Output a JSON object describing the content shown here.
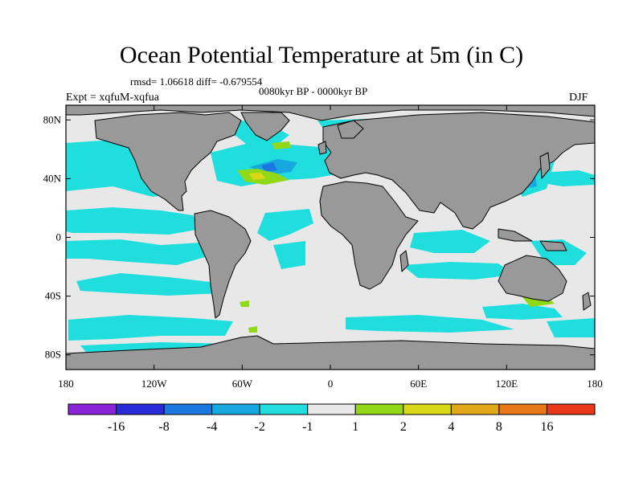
{
  "map": {
    "title": "Ocean Potential Temperature at 5m (in C)",
    "stats_text": "rmsd= 1.06618 diff= -0.679554",
    "period_text": "0080kyr BP - 0000kyr BP",
    "experiment_text": "Expt = xqfuM-xqfua",
    "season_text": "DJF",
    "projection": "cylindrical-equidistant",
    "lon_range": [
      -180,
      180
    ],
    "lat_range": [
      -90,
      90
    ],
    "lat_ticks": [
      {
        "value": 80,
        "label": "80N"
      },
      {
        "value": 40,
        "label": "40N"
      },
      {
        "value": 0,
        "label": "0"
      },
      {
        "value": -40,
        "label": "40S"
      },
      {
        "value": -80,
        "label": "80S"
      }
    ],
    "lon_ticks": [
      {
        "value": -180,
        "label": "180"
      },
      {
        "value": -120,
        "label": "120W"
      },
      {
        "value": -60,
        "label": "60W"
      },
      {
        "value": 0,
        "label": "0"
      },
      {
        "value": 60,
        "label": "60E"
      },
      {
        "value": 120,
        "label": "120E"
      },
      {
        "value": 180,
        "label": "180"
      }
    ],
    "colors": {
      "land": "#999999",
      "ocean_neutral": "#e8e8e8",
      "coast": "#000000"
    }
  },
  "colorbar": {
    "colors": [
      "#8a22d8",
      "#2a2ad8",
      "#1a78e0",
      "#18a8e0",
      "#20dede",
      "#e8e8e8",
      "#90d818",
      "#d8d818",
      "#e0a818",
      "#e87818",
      "#e83818"
    ],
    "labels": [
      {
        "boundary": 1,
        "text": "-16"
      },
      {
        "boundary": 2,
        "text": "-8"
      },
      {
        "boundary": 3,
        "text": "-4"
      },
      {
        "boundary": 4,
        "text": "-2"
      },
      {
        "boundary": 5,
        "text": "-1"
      },
      {
        "boundary": 6,
        "text": "1"
      },
      {
        "boundary": 7,
        "text": "2"
      },
      {
        "boundary": 8,
        "text": "4"
      },
      {
        "boundary": 9,
        "text": "8"
      },
      {
        "boundary": 10,
        "text": "16"
      }
    ]
  }
}
